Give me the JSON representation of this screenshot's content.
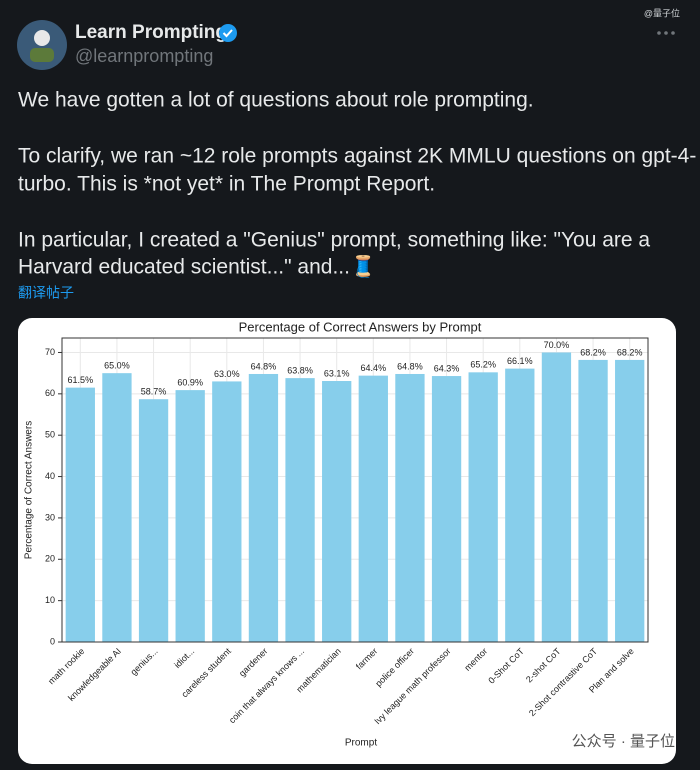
{
  "tweet": {
    "author": "Learn Prompting",
    "handle": "@learnprompting",
    "watermark_top": "@量子位",
    "lines": [
      "We have gotten a lot of questions about role prompting.",
      "To clarify, we ran ~12 role prompts against 2K MMLU questions on gpt-4-",
      "turbo. This is *not yet* in The Prompt Report.",
      "In particular, I created a \"Genius\" prompt, something like: \"You are a",
      "Harvard educated scientist...\" and...🧵"
    ],
    "translate": "翻译帖子",
    "watermark_bottom": "公众号 · 量子位"
  },
  "chart_data": {
    "type": "bar",
    "title": "Percentage of Correct Answers by Prompt",
    "x_label": "Prompt",
    "y_label": "Percentage of Correct Answers",
    "categories": [
      "math rookie",
      "knowledgeable AI",
      "genius...",
      "idiot...",
      "careless student",
      "gardener",
      "coin that always knows ...",
      "mathematician",
      "farmer",
      "police officer",
      "Ivy league math professor",
      "mentor",
      "0-Shot CoT",
      "2-shot CoT",
      "2-Shot contrastive CoT",
      "Plan and solve"
    ],
    "values": [
      61.5,
      65.0,
      58.7,
      60.9,
      63.0,
      64.8,
      63.8,
      63.1,
      64.4,
      64.8,
      64.3,
      65.2,
      66.1,
      70.0,
      68.2,
      68.2
    ],
    "value_labels": [
      "61.5%",
      "65.0%",
      "58.7%",
      "60.9%",
      "63.0%",
      "64.8%",
      "63.8%",
      "63.1%",
      "64.4%",
      "64.8%",
      "64.3%",
      "65.2%",
      "66.1%",
      "70.0%",
      "68.2%",
      "68.2%"
    ],
    "color": "#87ceeb",
    "ylim": [
      0,
      73.5
    ],
    "yticks": [
      0,
      10,
      20,
      30,
      40,
      50,
      60,
      70
    ],
    "grid": true
  }
}
